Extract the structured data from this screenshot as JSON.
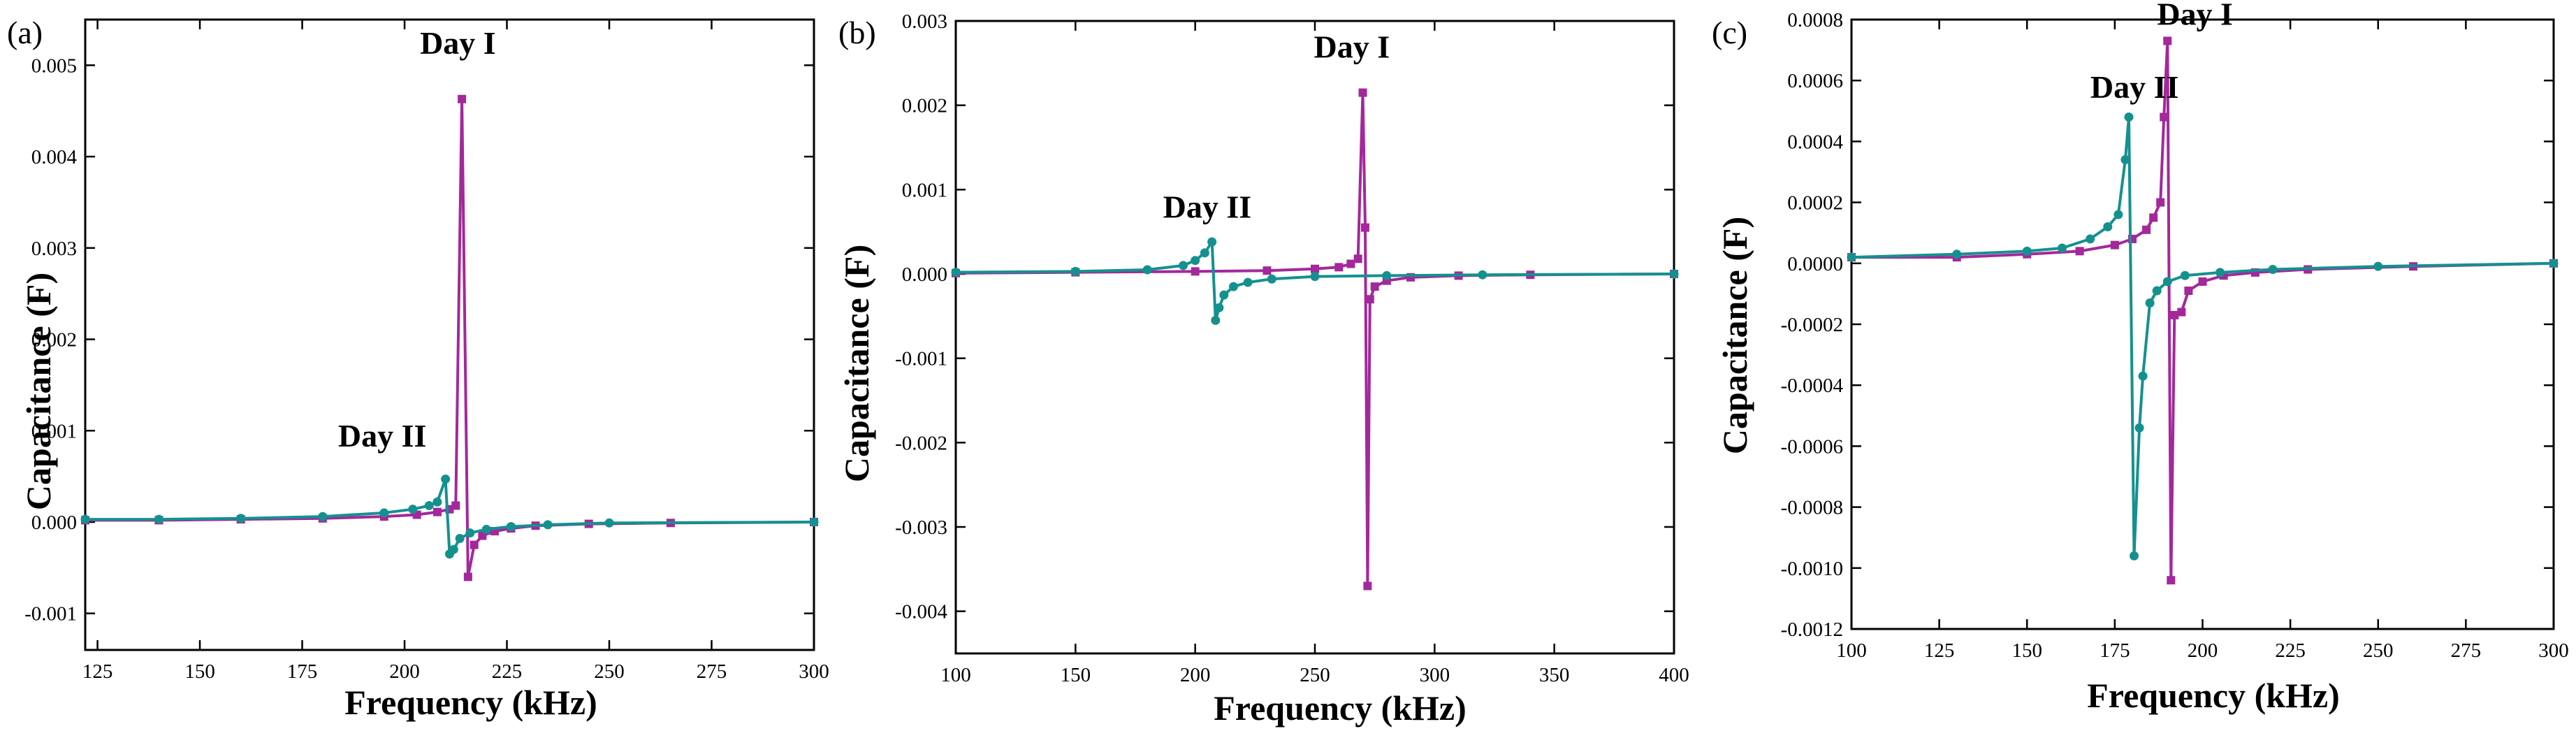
{
  "figure": {
    "colors": {
      "day1": "#a3289b",
      "day2": "#14918f",
      "axis": "#000000"
    }
  },
  "chart_data": [
    {
      "type": "line",
      "panel_label": "(a)",
      "xlabel": "Frequency (kHz)",
      "ylabel": "Capacitance (F)",
      "xlim": [
        122,
        300
      ],
      "ylim": [
        -0.0014,
        0.0055
      ],
      "xticks": [
        125,
        150,
        175,
        200,
        225,
        250,
        275,
        300
      ],
      "xtick_labels": [
        "125",
        "150",
        "175",
        "200",
        "225",
        "250",
        "275",
        "300"
      ],
      "yticks": [
        -0.001,
        0.0,
        0.001,
        0.002,
        0.003,
        0.004,
        0.005
      ],
      "ytick_labels": [
        "-0.001",
        "0.000",
        "0.001",
        "0.002",
        "0.003",
        "0.004",
        "0.005"
      ],
      "annotations": [
        {
          "text": "Day I",
          "x": 214,
          "y": 0.00505
        },
        {
          "text": "Day II",
          "x": 194,
          "y": 0.00075
        }
      ],
      "series": [
        {
          "name": "Day I",
          "color": "#a3289b",
          "marker": "square",
          "points": [
            [
              122,
              2e-05
            ],
            [
              140,
              2e-05
            ],
            [
              160,
              3e-05
            ],
            [
              180,
              4e-05
            ],
            [
              195,
              6e-05
            ],
            [
              203,
              8e-05
            ],
            [
              208,
              0.00011
            ],
            [
              211,
              0.00014
            ],
            [
              212.5,
              0.00018
            ],
            [
              214,
              0.00463
            ],
            [
              215.5,
              -0.0006
            ],
            [
              217,
              -0.00025
            ],
            [
              219,
              -0.00015
            ],
            [
              222,
              -0.0001
            ],
            [
              226,
              -7e-05
            ],
            [
              232,
              -4e-05
            ],
            [
              245,
              -2e-05
            ],
            [
              265,
              -1e-05
            ],
            [
              300,
              0.0
            ]
          ]
        },
        {
          "name": "Day II",
          "color": "#14918f",
          "marker": "circle",
          "points": [
            [
              122,
              3e-05
            ],
            [
              140,
              3e-05
            ],
            [
              160,
              4e-05
            ],
            [
              180,
              6e-05
            ],
            [
              195,
              0.0001
            ],
            [
              202,
              0.00014
            ],
            [
              206,
              0.00018
            ],
            [
              208,
              0.00022
            ],
            [
              210,
              0.00047
            ],
            [
              211,
              -0.00035
            ],
            [
              212,
              -0.0003
            ],
            [
              213.5,
              -0.00018
            ],
            [
              216,
              -0.00012
            ],
            [
              220,
              -8e-05
            ],
            [
              226,
              -5e-05
            ],
            [
              235,
              -3e-05
            ],
            [
              250,
              -1e-05
            ],
            [
              300,
              0.0
            ]
          ]
        }
      ]
    },
    {
      "type": "line",
      "panel_label": "(b)",
      "xlabel": "Frequency (kHz)",
      "ylabel": "Capacitance (F)",
      "xlim": [
        100,
        400
      ],
      "ylim": [
        -0.0045,
        0.003
      ],
      "xticks": [
        100,
        150,
        200,
        250,
        300,
        350,
        400
      ],
      "xtick_labels": [
        "100",
        "150",
        "200",
        "250",
        "300",
        "350",
        "400"
      ],
      "yticks": [
        -0.004,
        -0.003,
        -0.002,
        -0.001,
        0.0,
        0.001,
        0.002,
        0.003
      ],
      "ytick_labels": [
        "-0.004",
        "-0.003",
        "-0.002",
        "-0.001",
        "0.000",
        "0.001",
        "0.002",
        "0.003"
      ],
      "annotations": [
        {
          "text": "Day I",
          "x": 270,
          "y": 0.0025
        },
        {
          "text": "Day II",
          "x": 207,
          "y": 0.0006
        }
      ],
      "series": [
        {
          "name": "Day I",
          "color": "#a3289b",
          "marker": "square",
          "points": [
            [
              100,
              1e-05
            ],
            [
              150,
              2e-05
            ],
            [
              200,
              3e-05
            ],
            [
              230,
              4e-05
            ],
            [
              250,
              6e-05
            ],
            [
              260,
              8e-05
            ],
            [
              265,
              0.00012
            ],
            [
              268,
              0.00018
            ],
            [
              270,
              0.00215
            ],
            [
              271,
              0.00055
            ],
            [
              272,
              -0.0037
            ],
            [
              273,
              -0.0003
            ],
            [
              275,
              -0.00015
            ],
            [
              280,
              -8e-05
            ],
            [
              290,
              -4e-05
            ],
            [
              310,
              -2e-05
            ],
            [
              340,
              -1e-05
            ],
            [
              400,
              0.0
            ]
          ]
        },
        {
          "name": "Day II",
          "color": "#14918f",
          "marker": "circle",
          "points": [
            [
              100,
              2e-05
            ],
            [
              150,
              3e-05
            ],
            [
              180,
              5e-05
            ],
            [
              195,
              0.0001
            ],
            [
              200,
              0.00016
            ],
            [
              204,
              0.00025
            ],
            [
              207,
              0.00038
            ],
            [
              208.5,
              -0.00055
            ],
            [
              210,
              -0.0004
            ],
            [
              212,
              -0.00025
            ],
            [
              216,
              -0.00015
            ],
            [
              222,
              -0.0001
            ],
            [
              232,
              -6e-05
            ],
            [
              250,
              -3e-05
            ],
            [
              280,
              -2e-05
            ],
            [
              320,
              -1e-05
            ],
            [
              400,
              0.0
            ]
          ]
        }
      ]
    },
    {
      "type": "line",
      "panel_label": "(c)",
      "xlabel": "Frequency (kHz)",
      "ylabel": "Capacitance (F)",
      "xlim": [
        100,
        300
      ],
      "ylim": [
        -0.0012,
        0.0008
      ],
      "xticks": [
        100,
        125,
        150,
        175,
        200,
        225,
        250,
        275,
        300
      ],
      "xtick_labels": [
        "100",
        "125",
        "150",
        "175",
        "200",
        "225",
        "250",
        "275",
        "300"
      ],
      "yticks": [
        -0.0012,
        -0.001,
        -0.0008,
        -0.0006,
        -0.0004,
        -0.0002,
        0.0,
        0.0002,
        0.0004,
        0.0006,
        0.0008
      ],
      "ytick_labels": [
        "-0.0012",
        "-0.0010",
        "-0.0008",
        "-0.0006",
        "-0.0004",
        "-0.0002",
        "0.0000",
        "0.0002",
        "0.0004",
        "0.0006",
        "0.0008"
      ],
      "annotations": [
        {
          "text": "Day I",
          "x": 193,
          "y": 0.00076
        },
        {
          "text": "Day II",
          "x": 174,
          "y": 0.00052
        }
      ],
      "series": [
        {
          "name": "Day I",
          "color": "#a3289b",
          "marker": "square",
          "points": [
            [
              100,
              2e-05
            ],
            [
              130,
              2e-05
            ],
            [
              150,
              3e-05
            ],
            [
              165,
              4e-05
            ],
            [
              175,
              6e-05
            ],
            [
              180,
              8e-05
            ],
            [
              184,
              0.00011
            ],
            [
              186,
              0.00015
            ],
            [
              188,
              0.0002
            ],
            [
              189,
              0.00048
            ],
            [
              190,
              0.00073
            ],
            [
              191,
              -0.00104
            ],
            [
              192,
              -0.00017
            ],
            [
              194,
              -0.00016
            ],
            [
              196,
              -9e-05
            ],
            [
              200,
              -6e-05
            ],
            [
              206,
              -4e-05
            ],
            [
              215,
              -3e-05
            ],
            [
              230,
              -2e-05
            ],
            [
              260,
              -1e-05
            ],
            [
              300,
              0.0
            ]
          ]
        },
        {
          "name": "Day II",
          "color": "#14918f",
          "marker": "circle",
          "points": [
            [
              100,
              2e-05
            ],
            [
              130,
              3e-05
            ],
            [
              150,
              4e-05
            ],
            [
              160,
              5e-05
            ],
            [
              168,
              8e-05
            ],
            [
              173,
              0.00012
            ],
            [
              176,
              0.00016
            ],
            [
              178,
              0.00034
            ],
            [
              179,
              0.00048
            ],
            [
              180.5,
              -0.00096
            ],
            [
              182,
              -0.00054
            ],
            [
              183,
              -0.00037
            ],
            [
              185,
              -0.00013
            ],
            [
              187,
              -9e-05
            ],
            [
              190,
              -6e-05
            ],
            [
              195,
              -4e-05
            ],
            [
              205,
              -3e-05
            ],
            [
              220,
              -2e-05
            ],
            [
              250,
              -1e-05
            ],
            [
              300,
              0.0
            ]
          ]
        }
      ]
    }
  ]
}
